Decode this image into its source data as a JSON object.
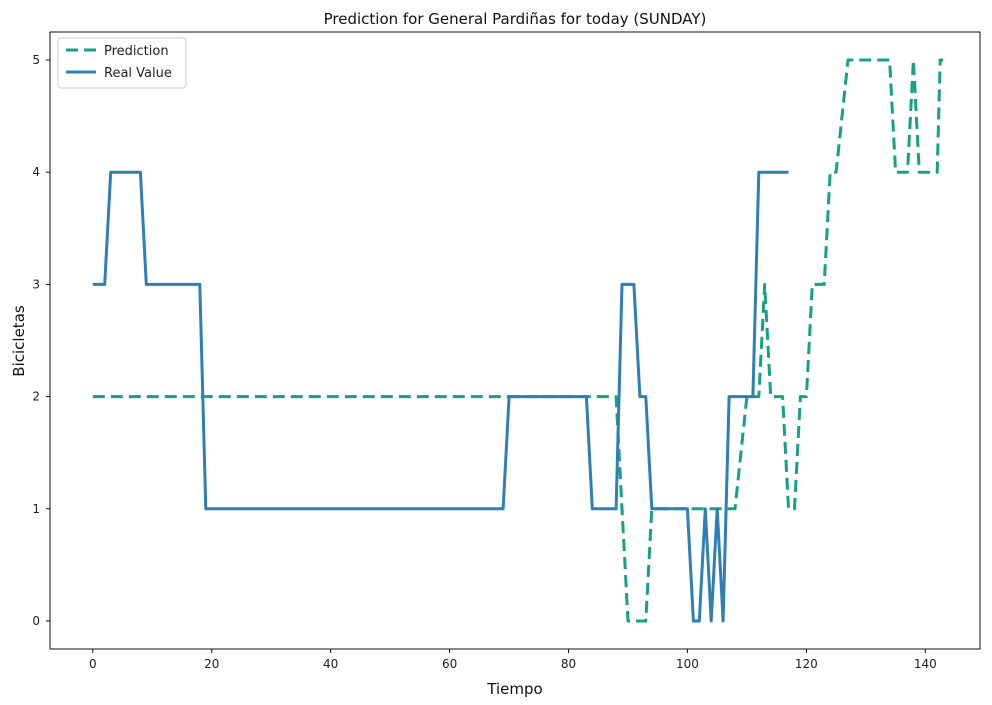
{
  "chart_data": {
    "type": "line",
    "title": "Prediction for General Pardiñas for today (SUNDAY)",
    "xlabel": "Tiempo",
    "ylabel": "Bicicletas",
    "xlim": [
      -7.2,
      149.2
    ],
    "ylim": [
      -0.25,
      5.25
    ],
    "xticks": [
      0,
      20,
      40,
      60,
      80,
      100,
      120,
      140
    ],
    "yticks": [
      0,
      1,
      2,
      3,
      4,
      5
    ],
    "grid": false,
    "legend_position": "upper-left",
    "series": [
      {
        "name": "Prediction",
        "color": "#16a085",
        "style": "dashed",
        "points": [
          [
            0,
            2
          ],
          [
            88,
            2
          ],
          [
            89,
            1
          ],
          [
            90,
            0
          ],
          [
            93,
            0
          ],
          [
            94,
            1
          ],
          [
            108,
            1
          ],
          [
            110,
            2
          ],
          [
            112,
            2
          ],
          [
            113,
            3
          ],
          [
            114,
            2
          ],
          [
            116,
            2
          ],
          [
            117,
            1
          ],
          [
            118,
            1
          ],
          [
            119,
            2
          ],
          [
            120,
            2
          ],
          [
            121,
            3
          ],
          [
            123,
            3
          ],
          [
            124,
            4
          ],
          [
            125,
            4
          ],
          [
            127,
            5
          ],
          [
            134,
            5
          ],
          [
            135,
            4
          ],
          [
            137,
            4
          ],
          [
            138,
            5
          ],
          [
            139,
            4
          ],
          [
            142,
            4
          ],
          [
            142.5,
            5
          ],
          [
            143,
            5
          ]
        ]
      },
      {
        "name": "Real Value",
        "color": "#2e7fb6",
        "style": "solid",
        "points": [
          [
            0,
            3
          ],
          [
            2,
            3
          ],
          [
            3,
            4
          ],
          [
            8,
            4
          ],
          [
            9,
            3
          ],
          [
            18,
            3
          ],
          [
            19,
            1
          ],
          [
            69,
            1
          ],
          [
            70,
            2
          ],
          [
            83,
            2
          ],
          [
            84,
            1
          ],
          [
            88,
            1
          ],
          [
            89,
            3
          ],
          [
            91,
            3
          ],
          [
            92,
            2
          ],
          [
            93,
            2
          ],
          [
            94,
            1
          ],
          [
            100,
            1
          ],
          [
            101,
            0
          ],
          [
            102,
            0
          ],
          [
            103,
            1
          ],
          [
            104,
            0
          ],
          [
            105,
            1
          ],
          [
            106,
            0
          ],
          [
            107,
            2
          ],
          [
            110,
            2
          ],
          [
            111,
            2
          ],
          [
            112,
            4
          ],
          [
            117,
            4
          ]
        ]
      }
    ]
  }
}
